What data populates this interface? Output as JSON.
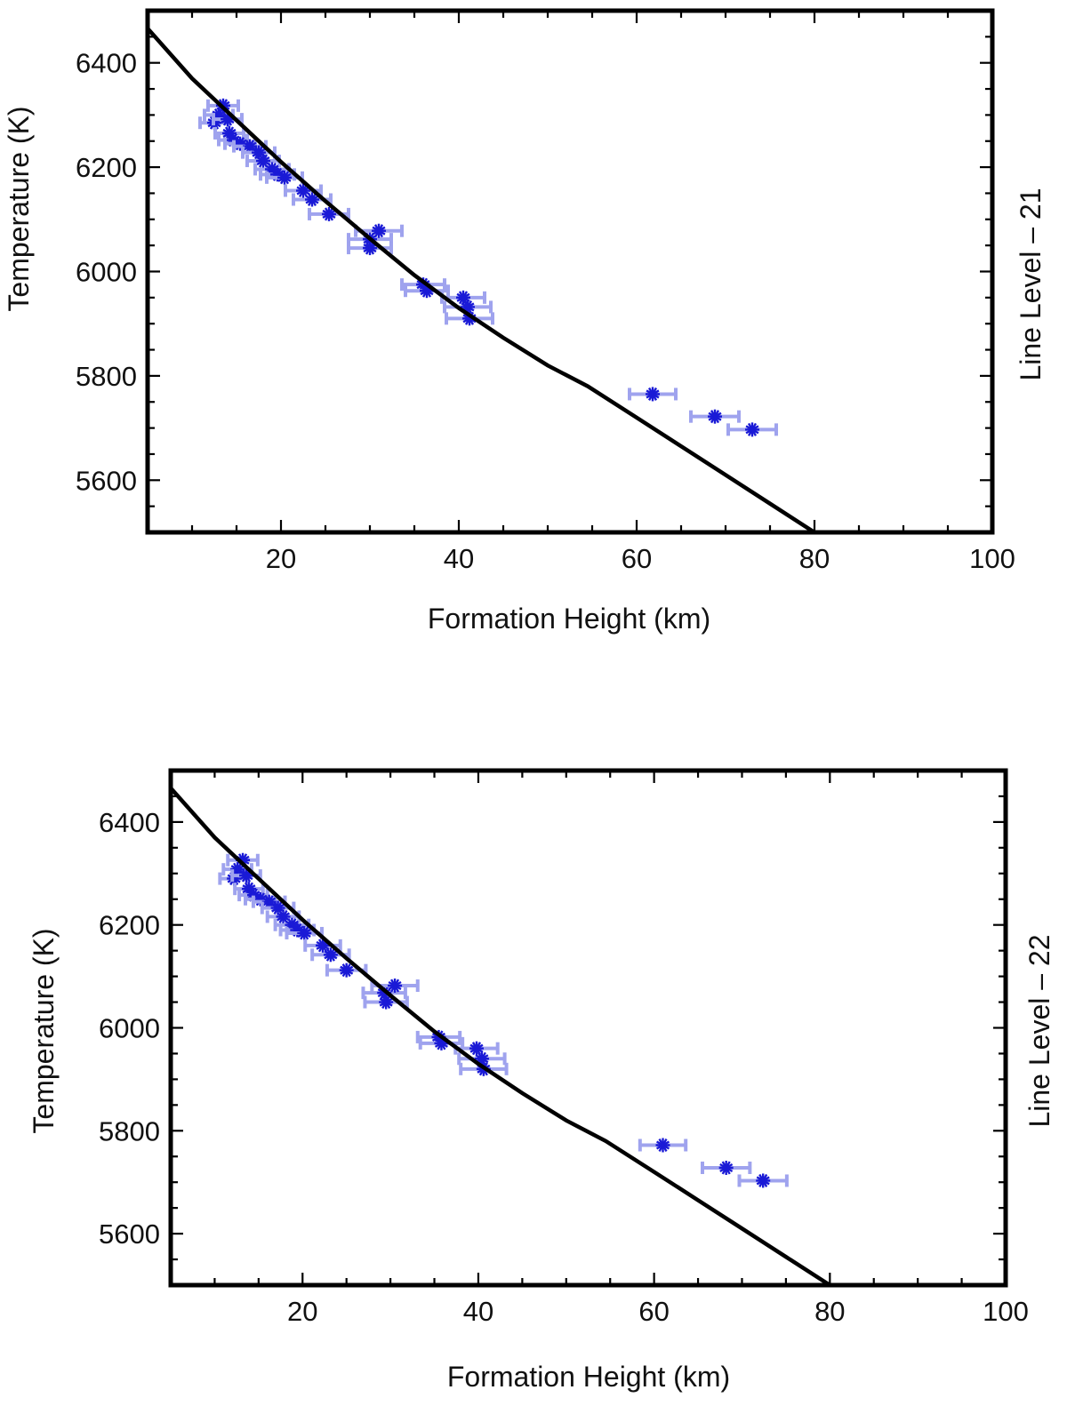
{
  "chart_data": [
    {
      "type": "scatter",
      "xlabel": "Formation Height (km)",
      "ylabel": "Temperature (K)",
      "right_label": "Line Level – 21",
      "xlim": [
        5,
        100
      ],
      "ylim": [
        5500,
        6500
      ],
      "x_ticks": [
        20,
        40,
        60,
        80,
        100
      ],
      "y_ticks": [
        5600,
        5800,
        6000,
        6200,
        6400
      ],
      "grid": false,
      "colors": {
        "model_line": "#000000",
        "points": "#1a1ad6",
        "error_bars": "#9fa3ee"
      },
      "model_line": {
        "x": [
          5,
          10,
          15,
          20,
          25,
          30,
          35,
          40,
          45,
          50,
          54.5,
          60,
          65,
          70,
          75,
          80,
          85,
          88
        ],
        "y": [
          6466,
          6370,
          6290,
          6210,
          6135,
          6063,
          5993,
          5930,
          5873,
          5820,
          5780,
          5720,
          5665,
          5610,
          5555,
          5500,
          5472,
          5452
        ]
      },
      "points": [
        {
          "x": 12.5,
          "y": 6285,
          "xerr": 1.6
        },
        {
          "x": 13.0,
          "y": 6300,
          "xerr": 1.6
        },
        {
          "x": 13.5,
          "y": 6318,
          "xerr": 1.7
        },
        {
          "x": 14.0,
          "y": 6292,
          "xerr": 1.6
        },
        {
          "x": 14.2,
          "y": 6265,
          "xerr": 1.6
        },
        {
          "x": 14.6,
          "y": 6252,
          "xerr": 1.6
        },
        {
          "x": 15.4,
          "y": 6245,
          "xerr": 1.7
        },
        {
          "x": 16.5,
          "y": 6240,
          "xerr": 1.8
        },
        {
          "x": 17.5,
          "y": 6228,
          "xerr": 1.8
        },
        {
          "x": 18.0,
          "y": 6212,
          "xerr": 1.8
        },
        {
          "x": 19.0,
          "y": 6196,
          "xerr": 1.9
        },
        {
          "x": 19.6,
          "y": 6186,
          "xerr": 1.9
        },
        {
          "x": 20.4,
          "y": 6180,
          "xerr": 2.0
        },
        {
          "x": 22.5,
          "y": 6155,
          "xerr": 2.0
        },
        {
          "x": 23.5,
          "y": 6138,
          "xerr": 2.1
        },
        {
          "x": 25.4,
          "y": 6110,
          "xerr": 2.2
        },
        {
          "x": 30.0,
          "y": 6062,
          "xerr": 2.4
        },
        {
          "x": 30.0,
          "y": 6045,
          "xerr": 2.4
        },
        {
          "x": 31.0,
          "y": 6078,
          "xerr": 2.6
        },
        {
          "x": 36.0,
          "y": 5975,
          "xerr": 2.4
        },
        {
          "x": 36.4,
          "y": 5963,
          "xerr": 2.4
        },
        {
          "x": 40.5,
          "y": 5950,
          "xerr": 2.4
        },
        {
          "x": 41.0,
          "y": 5932,
          "xerr": 2.6
        },
        {
          "x": 41.2,
          "y": 5910,
          "xerr": 2.6
        },
        {
          "x": 61.8,
          "y": 5765,
          "xerr": 2.6
        },
        {
          "x": 68.8,
          "y": 5722,
          "xerr": 2.7
        },
        {
          "x": 73.0,
          "y": 5697,
          "xerr": 2.7
        }
      ]
    },
    {
      "type": "scatter",
      "xlabel": "Formation Height (km)",
      "ylabel": "Temperature (K)",
      "right_label": "Line Level – 22",
      "xlim": [
        5,
        100
      ],
      "ylim": [
        5500,
        6500
      ],
      "x_ticks": [
        20,
        40,
        60,
        80,
        100
      ],
      "y_ticks": [
        5600,
        5800,
        6000,
        6200,
        6400
      ],
      "grid": false,
      "colors": {
        "model_line": "#000000",
        "points": "#1a1ad6",
        "error_bars": "#9fa3ee"
      },
      "model_line": {
        "x": [
          5,
          10,
          15,
          20,
          25,
          30,
          35,
          40,
          45,
          50,
          54.5,
          60,
          65,
          70,
          75,
          80,
          85,
          88
        ],
        "y": [
          6466,
          6370,
          6290,
          6210,
          6135,
          6063,
          5993,
          5930,
          5873,
          5820,
          5780,
          5720,
          5665,
          5610,
          5555,
          5500,
          5472,
          5452
        ]
      },
      "points": [
        {
          "x": 12.2,
          "y": 6290,
          "xerr": 1.6
        },
        {
          "x": 12.6,
          "y": 6308,
          "xerr": 1.6
        },
        {
          "x": 13.2,
          "y": 6326,
          "xerr": 1.7
        },
        {
          "x": 13.6,
          "y": 6296,
          "xerr": 1.6
        },
        {
          "x": 13.9,
          "y": 6270,
          "xerr": 1.6
        },
        {
          "x": 14.4,
          "y": 6258,
          "xerr": 1.6
        },
        {
          "x": 15.2,
          "y": 6250,
          "xerr": 1.7
        },
        {
          "x": 16.2,
          "y": 6245,
          "xerr": 1.8
        },
        {
          "x": 17.2,
          "y": 6233,
          "xerr": 1.8
        },
        {
          "x": 17.8,
          "y": 6216,
          "xerr": 1.8
        },
        {
          "x": 18.8,
          "y": 6200,
          "xerr": 1.9
        },
        {
          "x": 19.4,
          "y": 6190,
          "xerr": 1.9
        },
        {
          "x": 20.2,
          "y": 6184,
          "xerr": 2.0
        },
        {
          "x": 22.3,
          "y": 6160,
          "xerr": 2.0
        },
        {
          "x": 23.2,
          "y": 6142,
          "xerr": 2.1
        },
        {
          "x": 25.0,
          "y": 6112,
          "xerr": 2.2
        },
        {
          "x": 29.3,
          "y": 6068,
          "xerr": 2.4
        },
        {
          "x": 29.5,
          "y": 6050,
          "xerr": 2.4
        },
        {
          "x": 30.5,
          "y": 6082,
          "xerr": 2.6
        },
        {
          "x": 35.5,
          "y": 5982,
          "xerr": 2.4
        },
        {
          "x": 35.8,
          "y": 5970,
          "xerr": 2.4
        },
        {
          "x": 39.8,
          "y": 5960,
          "xerr": 2.4
        },
        {
          "x": 40.4,
          "y": 5940,
          "xerr": 2.6
        },
        {
          "x": 40.6,
          "y": 5920,
          "xerr": 2.6
        },
        {
          "x": 61.0,
          "y": 5772,
          "xerr": 2.6
        },
        {
          "x": 68.2,
          "y": 5728,
          "xerr": 2.7
        },
        {
          "x": 72.4,
          "y": 5703,
          "xerr": 2.7
        }
      ]
    }
  ]
}
